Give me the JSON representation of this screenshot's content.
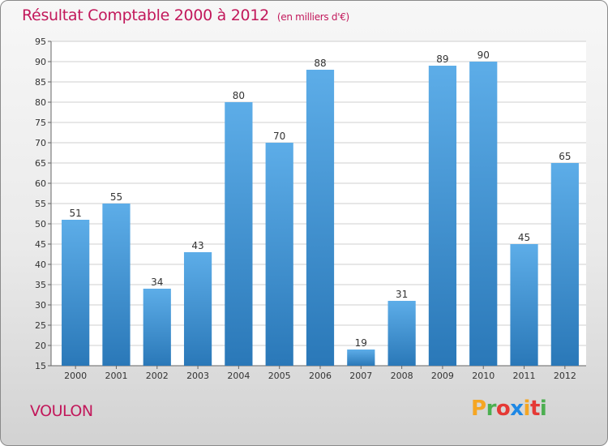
{
  "header": {
    "title": "Résultat Comptable 2000 à 2012",
    "subtitle": "(en milliers d'€)"
  },
  "footer": {
    "commune": "VOULON",
    "brand": "Proxiti",
    "brand_colors": [
      "#f5a623",
      "#4caf50",
      "#e53935",
      "#1e88e5",
      "#f5a623",
      "#e53935",
      "#4caf50"
    ]
  },
  "colors": {
    "title": "#c2185b",
    "bar_top": "#5dade8",
    "bar_bottom": "#2a78b8"
  },
  "chart_data": {
    "type": "bar",
    "title": "Résultat Comptable 2000 à 2012",
    "xlabel": "",
    "ylabel": "",
    "categories": [
      "2000",
      "2001",
      "2002",
      "2003",
      "2004",
      "2005",
      "2006",
      "2007",
      "2008",
      "2009",
      "2010",
      "2011",
      "2012"
    ],
    "values": [
      51,
      55,
      34,
      43,
      80,
      70,
      88,
      19,
      31,
      89,
      90,
      45,
      65
    ],
    "ylim": [
      15,
      95
    ],
    "yticks": [
      15,
      20,
      25,
      30,
      35,
      40,
      45,
      50,
      55,
      60,
      65,
      70,
      75,
      80,
      85,
      90,
      95
    ],
    "grid": true,
    "legend": "none"
  }
}
